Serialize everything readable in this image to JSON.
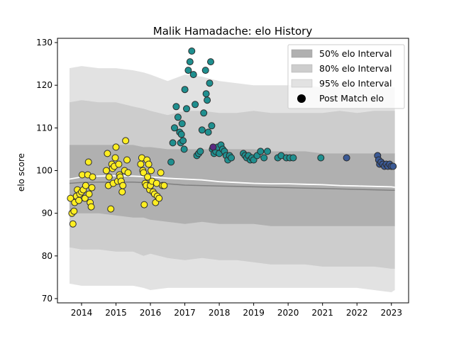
{
  "chart_data": {
    "type": "scatter",
    "title": "Malik Hamadache: elo History",
    "xlabel": "",
    "ylabel": "elo score",
    "xlim": [
      2013.3,
      2023.5
    ],
    "ylim": [
      69,
      131
    ],
    "x_ticks": [
      2014,
      2015,
      2016,
      2017,
      2018,
      2019,
      2020,
      2021,
      2022,
      2023
    ],
    "y_ticks": [
      70,
      80,
      90,
      100,
      110,
      120,
      130
    ],
    "grid": false,
    "legend_position": "top-right",
    "legend": [
      {
        "label": "50% elo Interval",
        "kind": "band",
        "color": "#b0b0b0"
      },
      {
        "label": "80% elo Interval",
        "kind": "band",
        "color": "#cdcdcd"
      },
      {
        "label": "95% elo Interval",
        "kind": "band",
        "color": "#e2e2e2"
      },
      {
        "label": "Post Match elo",
        "kind": "marker",
        "color": "#000000"
      }
    ],
    "colors": {
      "band95": "#e2e2e2",
      "band80": "#cdcdcd",
      "band50": "#b0b0b0",
      "mean_line": "#ffffff",
      "median_line": "#808080",
      "marker_edge": "#2b2b2b",
      "era_2014_2016": "#ffee22",
      "era_2017_2021": "#1f8f8f",
      "era_2022_2023": "#3b5a96",
      "highlight_2018": "#5a2a82"
    },
    "bands": {
      "x": [
        2013.65,
        2014.0,
        2014.5,
        2015.0,
        2015.5,
        2015.8,
        2016.0,
        2016.5,
        2017.0,
        2017.5,
        2018.0,
        2018.5,
        2019.0,
        2019.5,
        2020.0,
        2020.5,
        2021.0,
        2021.5,
        2022.0,
        2022.5,
        2023.0,
        2023.1
      ],
      "p95_upper": [
        124,
        124.5,
        124,
        124,
        123.5,
        123,
        122.5,
        121,
        122.5,
        122,
        121,
        120.5,
        120,
        120,
        120,
        120,
        119.5,
        119.5,
        119.5,
        119.5,
        119.5,
        119.5
      ],
      "p80_upper": [
        116,
        116.5,
        116,
        116,
        115,
        114.5,
        114,
        113,
        114,
        114,
        113.5,
        113.5,
        114,
        113.5,
        113.5,
        113.5,
        113.5,
        114,
        113.5,
        114,
        114,
        114
      ],
      "p50_upper": [
        106,
        106,
        106,
        106,
        106,
        105.5,
        105.5,
        105,
        105,
        105,
        105,
        105,
        105,
        104.5,
        104.5,
        104.5,
        104,
        104,
        104,
        104,
        104,
        104
      ],
      "p50_lower": [
        90,
        90,
        90,
        89.5,
        89,
        89,
        88.5,
        88,
        87.5,
        88,
        87.5,
        87.5,
        87.5,
        87,
        87,
        87,
        87,
        87,
        87,
        87,
        87,
        87
      ],
      "p80_lower": [
        82,
        81.5,
        81.5,
        81,
        81,
        80,
        80.5,
        79.5,
        79,
        79.5,
        79,
        79,
        78.5,
        78,
        78,
        78,
        77.5,
        77.5,
        77.5,
        77.5,
        77,
        77
      ],
      "p95_lower": [
        73.5,
        73,
        73,
        73,
        73,
        72.5,
        72,
        72.5,
        72.5,
        72.5,
        72.5,
        72.5,
        72.5,
        72.5,
        72.5,
        72.5,
        72.5,
        72.5,
        72.5,
        72,
        71.5,
        72
      ]
    },
    "mean_line": {
      "x": [
        2013.65,
        2014.0,
        2014.5,
        2015.0,
        2015.5,
        2016.0,
        2016.5,
        2017.0,
        2017.5,
        2018.0,
        2018.5,
        2019.0,
        2019.5,
        2020.0,
        2020.5,
        2021.0,
        2021.5,
        2022.0,
        2022.5,
        2023.0,
        2023.1
      ],
      "y": [
        98,
        98.5,
        98.7,
        98.8,
        98.7,
        98.5,
        98.2,
        98.0,
        97.8,
        97.4,
        97.2,
        97.0,
        96.9,
        96.9,
        96.8,
        96.7,
        96.5,
        96.4,
        96.3,
        96.2,
        96.1
      ]
    },
    "median_line": {
      "x": [
        2013.65,
        2014.0,
        2014.5,
        2015.0,
        2015.5,
        2016.0,
        2016.5,
        2017.0,
        2017.5,
        2018.0,
        2018.5,
        2019.0,
        2019.5,
        2020.0,
        2020.5,
        2021.0,
        2021.5,
        2022.0,
        2022.5,
        2023.0,
        2023.1
      ],
      "y": [
        97.0,
        97.2,
        97.3,
        97.3,
        97.3,
        97.1,
        96.9,
        96.6,
        96.5,
        96.4,
        96.3,
        96.2,
        96.1,
        96.0,
        95.9,
        95.8,
        95.7,
        95.6,
        95.5,
        95.4,
        95.4
      ]
    },
    "series": [
      {
        "color": "#ffee22",
        "x": [
          2013.68,
          2013.72,
          2013.75,
          2013.78,
          2013.8,
          2013.85,
          2013.88,
          2013.92,
          2013.95,
          2014.0,
          2014.02,
          2014.05,
          2014.1,
          2014.12,
          2014.18,
          2014.2,
          2014.22,
          2014.25,
          2014.28,
          2014.3,
          2014.32,
          2014.72,
          2014.75,
          2014.78,
          2014.8,
          2014.85,
          2014.88,
          2014.9,
          2014.92,
          2014.95,
          2014.98,
          2015.0,
          2015.05,
          2015.08,
          2015.1,
          2015.12,
          2015.15,
          2015.18,
          2015.2,
          2015.25,
          2015.28,
          2015.32,
          2015.35,
          2015.72,
          2015.75,
          2015.78,
          2015.8,
          2015.82,
          2015.85,
          2015.88,
          2015.9,
          2015.92,
          2015.95,
          2015.98,
          2016.0,
          2016.02,
          2016.05,
          2016.08,
          2016.12,
          2016.15,
          2016.18,
          2016.2,
          2016.25,
          2016.3,
          2016.35,
          2016.4
        ],
        "y": [
          93.5,
          90.0,
          87.5,
          90.5,
          92.5,
          94.0,
          95.5,
          93.0,
          94.5,
          95.0,
          99.0,
          95.5,
          93.5,
          96.5,
          99.0,
          102.0,
          94.5,
          92.5,
          91.5,
          96.0,
          98.5,
          100.0,
          104.0,
          96.5,
          98.5,
          91.0,
          101.5,
          100.5,
          97.0,
          101.0,
          103.0,
          105.5,
          97.5,
          101.5,
          99.0,
          98.5,
          97.5,
          95.0,
          96.5,
          100.0,
          107.0,
          102.5,
          99.5,
          101.5,
          103.0,
          100.0,
          99.5,
          92.0,
          97.0,
          96.5,
          102.5,
          98.5,
          101.5,
          95.5,
          96.5,
          100.0,
          97.5,
          95.0,
          94.5,
          92.5,
          97.0,
          94.0,
          93.5,
          99.5,
          96.5,
          96.5
        ]
      },
      {
        "color": "#1f8f8f",
        "x": [
          2016.6,
          2016.65,
          2016.7,
          2016.75,
          2016.8,
          2016.85,
          2016.88,
          2016.9,
          2016.92,
          2016.95,
          2016.98,
          2017.0,
          2017.05,
          2017.1,
          2017.15,
          2017.2,
          2017.25,
          2017.3,
          2017.35,
          2017.4,
          2017.45,
          2017.5,
          2017.55,
          2017.6,
          2017.62,
          2017.65,
          2017.68,
          2017.72,
          2017.75,
          2017.78,
          2017.8,
          2017.85,
          2017.9,
          2017.95,
          2018.0,
          2018.05,
          2018.1,
          2018.15,
          2018.2,
          2018.25,
          2018.3,
          2018.35,
          2018.7,
          2018.75,
          2018.8,
          2018.85,
          2018.9,
          2018.95,
          2019.0,
          2019.1,
          2019.2,
          2019.3,
          2019.4,
          2019.7,
          2019.8,
          2019.95,
          2020.05,
          2020.15,
          2020.95
        ],
        "y": [
          102.0,
          106.5,
          110.0,
          115.0,
          112.5,
          109.0,
          106.5,
          108.5,
          111.0,
          107.0,
          105.0,
          119.0,
          114.5,
          123.5,
          125.5,
          128.0,
          122.5,
          115.5,
          103.5,
          104.0,
          104.5,
          109.5,
          113.5,
          123.5,
          118.0,
          116.5,
          109.0,
          120.5,
          125.5,
          110.5,
          105.0,
          104.0,
          104.5,
          105.5,
          104.0,
          106.0,
          105.0,
          104.5,
          103.5,
          102.5,
          103.5,
          103.0,
          104.0,
          103.5,
          103.0,
          103.5,
          102.5,
          103.0,
          102.5,
          103.5,
          104.5,
          103.0,
          104.5,
          103.0,
          103.5,
          103.0,
          103.0,
          103.0,
          103.0
        ]
      },
      {
        "color": "#3b5a96",
        "x": [
          2021.7,
          2022.6,
          2022.63,
          2022.66,
          2022.7,
          2022.75,
          2022.8,
          2022.85,
          2022.9,
          2022.95,
          2023.0,
          2023.05
        ],
        "y": [
          103.0,
          103.5,
          102.5,
          101.5,
          102.0,
          101.5,
          101.0,
          101.5,
          101.0,
          101.5,
          101.0,
          101.0
        ]
      },
      {
        "color": "#5a2a82",
        "x": [
          2017.82
        ],
        "y": [
          105.5
        ]
      }
    ]
  }
}
